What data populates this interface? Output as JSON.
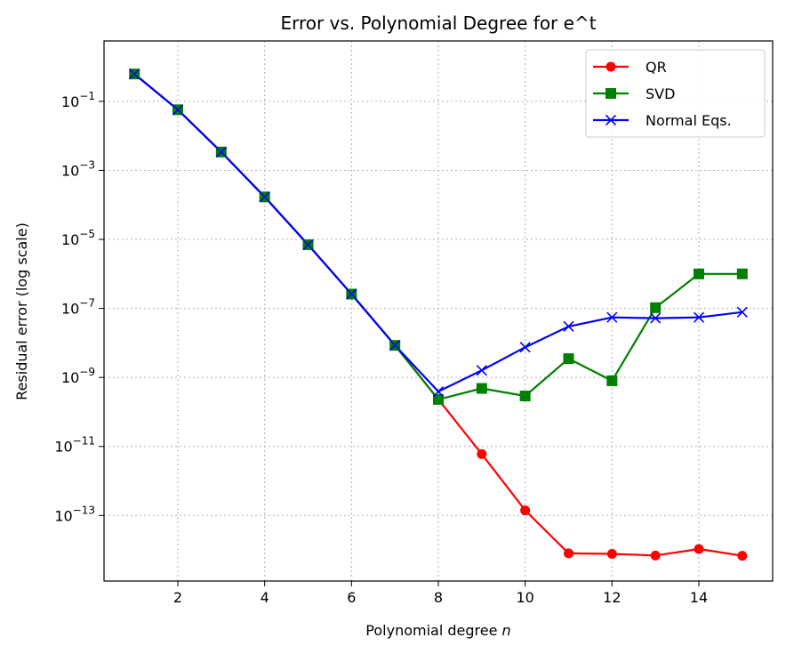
{
  "chart_data": {
    "type": "line",
    "title": "Error vs. Polynomial Degree for e^t",
    "xlabel": "Polynomial degree",
    "xlabel_var": "n",
    "ylabel": "Residual error (log scale)",
    "yscale": "log",
    "xlim": [
      0.3,
      15.7
    ],
    "ylim_exp": [
      -14.9,
      0.75
    ],
    "xticks": [
      2,
      4,
      6,
      8,
      10,
      12,
      14
    ],
    "yticks_exp": [
      -13,
      -11,
      -9,
      -7,
      -5,
      -3,
      -1
    ],
    "ytick_base": "10",
    "grid": true,
    "legend_position": "top-right",
    "x": [
      1,
      2,
      3,
      4,
      5,
      6,
      7,
      8,
      9,
      10,
      11,
      12,
      13,
      14,
      15
    ],
    "series": [
      {
        "name": "QR",
        "color": "#ff0000",
        "marker": "circle",
        "values": [
          0.62,
          0.057,
          0.0034,
          0.00017,
          7e-06,
          2.6e-07,
          8.5e-09,
          2.3e-10,
          6e-12,
          1.4e-13,
          8e-15,
          7.7e-15,
          6.9e-15,
          1.07e-14,
          6.8e-15
        ]
      },
      {
        "name": "SVD",
        "color": "#008000",
        "marker": "square",
        "values": [
          0.62,
          0.057,
          0.0034,
          0.00017,
          7e-06,
          2.6e-07,
          8.5e-09,
          2.3e-10,
          4.8e-10,
          2.9e-10,
          3.5e-09,
          8e-10,
          1.05e-07,
          1e-06,
          1e-06
        ]
      },
      {
        "name": "Normal Eqs.",
        "color": "#0000ff",
        "marker": "x",
        "values": [
          0.62,
          0.057,
          0.0034,
          0.00017,
          7e-06,
          2.6e-07,
          8.5e-09,
          3.9e-10,
          1.6e-09,
          7.5e-09,
          3e-08,
          5.5e-08,
          5.2e-08,
          5.5e-08,
          7.8e-08
        ]
      }
    ]
  }
}
